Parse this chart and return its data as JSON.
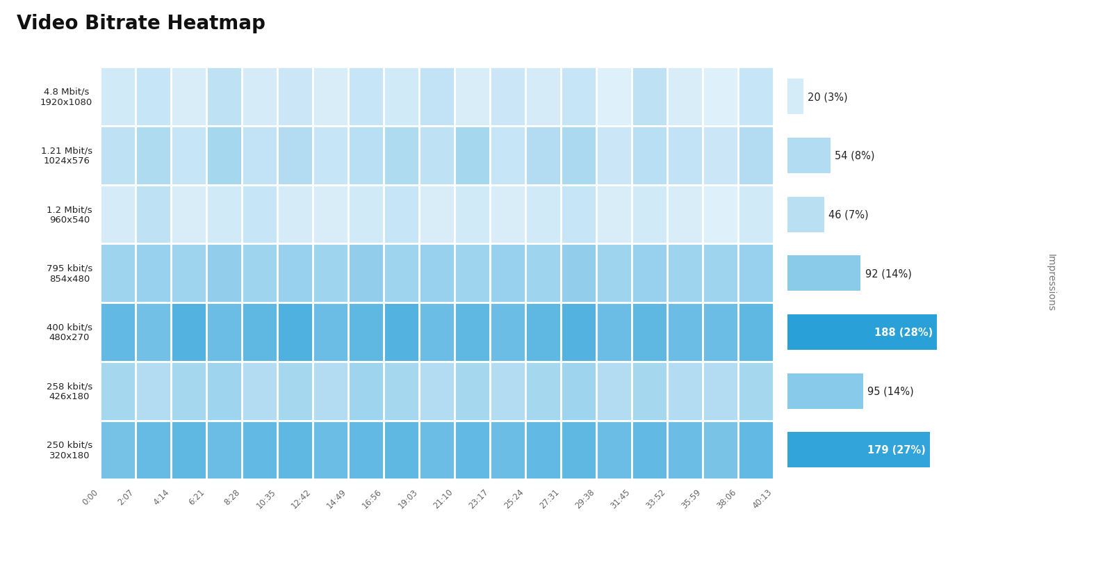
{
  "title": "Video Bitrate Heatmap",
  "title_fontsize": 20,
  "title_fontweight": "bold",
  "ytick_labels": [
    "4.8 Mbit/s\n1920x1080",
    "1.21 Mbit/s\n1024x576",
    "1.2 Mbit/s\n960x540",
    "795 kbit/s\n854x480",
    "400 kbit/s\n480x270",
    "258 kbit/s\n426x180",
    "250 kbit/s\n320x180"
  ],
  "xtick_labels": [
    "0:00",
    "2:07",
    "4:14",
    "6:21",
    "8:28",
    "10:35",
    "12:42",
    "14:49",
    "16:56",
    "19:03",
    "21:10",
    "23:17",
    "25:24",
    "27:31",
    "29:38",
    "31:45",
    "33:52",
    "35:59",
    "38:06",
    "40:13"
  ],
  "impression_labels": [
    "20 (3%)",
    "54 (8%)",
    "46 (7%)",
    "92 (14%)",
    "188 (28%)",
    "95 (14%)",
    "179 (27%)"
  ],
  "impression_values": [
    20,
    54,
    46,
    92,
    188,
    95,
    179
  ],
  "impression_bold": [
    false,
    false,
    false,
    false,
    true,
    false,
    true
  ],
  "sidebar_label": "Impressions",
  "heatmap_data": [
    [
      0.12,
      0.18,
      0.08,
      0.22,
      0.1,
      0.15,
      0.08,
      0.18,
      0.12,
      0.2,
      0.08,
      0.15,
      0.1,
      0.18,
      0.05,
      0.22,
      0.08,
      0.05,
      0.18
    ],
    [
      0.22,
      0.3,
      0.18,
      0.35,
      0.2,
      0.28,
      0.18,
      0.25,
      0.3,
      0.22,
      0.35,
      0.18,
      0.28,
      0.32,
      0.15,
      0.25,
      0.2,
      0.15,
      0.28
    ],
    [
      0.1,
      0.22,
      0.08,
      0.12,
      0.18,
      0.1,
      0.08,
      0.12,
      0.18,
      0.08,
      0.12,
      0.08,
      0.12,
      0.18,
      0.08,
      0.12,
      0.08,
      0.05,
      0.12
    ],
    [
      0.38,
      0.42,
      0.38,
      0.45,
      0.38,
      0.42,
      0.38,
      0.45,
      0.38,
      0.42,
      0.38,
      0.42,
      0.38,
      0.45,
      0.38,
      0.42,
      0.38,
      0.38,
      0.42
    ],
    [
      0.7,
      0.62,
      0.78,
      0.65,
      0.72,
      0.8,
      0.65,
      0.72,
      0.78,
      0.65,
      0.72,
      0.65,
      0.72,
      0.78,
      0.65,
      0.72,
      0.65,
      0.65,
      0.72
    ],
    [
      0.35,
      0.28,
      0.35,
      0.38,
      0.28,
      0.35,
      0.28,
      0.38,
      0.35,
      0.28,
      0.35,
      0.28,
      0.35,
      0.38,
      0.28,
      0.35,
      0.28,
      0.28,
      0.35
    ],
    [
      0.6,
      0.68,
      0.72,
      0.65,
      0.7,
      0.72,
      0.65,
      0.7,
      0.72,
      0.65,
      0.7,
      0.65,
      0.7,
      0.72,
      0.65,
      0.7,
      0.65,
      0.58,
      0.7
    ]
  ],
  "bg_color": "#ffffff",
  "heatmap_cmap_low": [
    232,
    244,
    252
  ],
  "heatmap_cmap_high": [
    41,
    160,
    216
  ],
  "grid_color": "#ffffff",
  "grid_linewidth": 2.0
}
